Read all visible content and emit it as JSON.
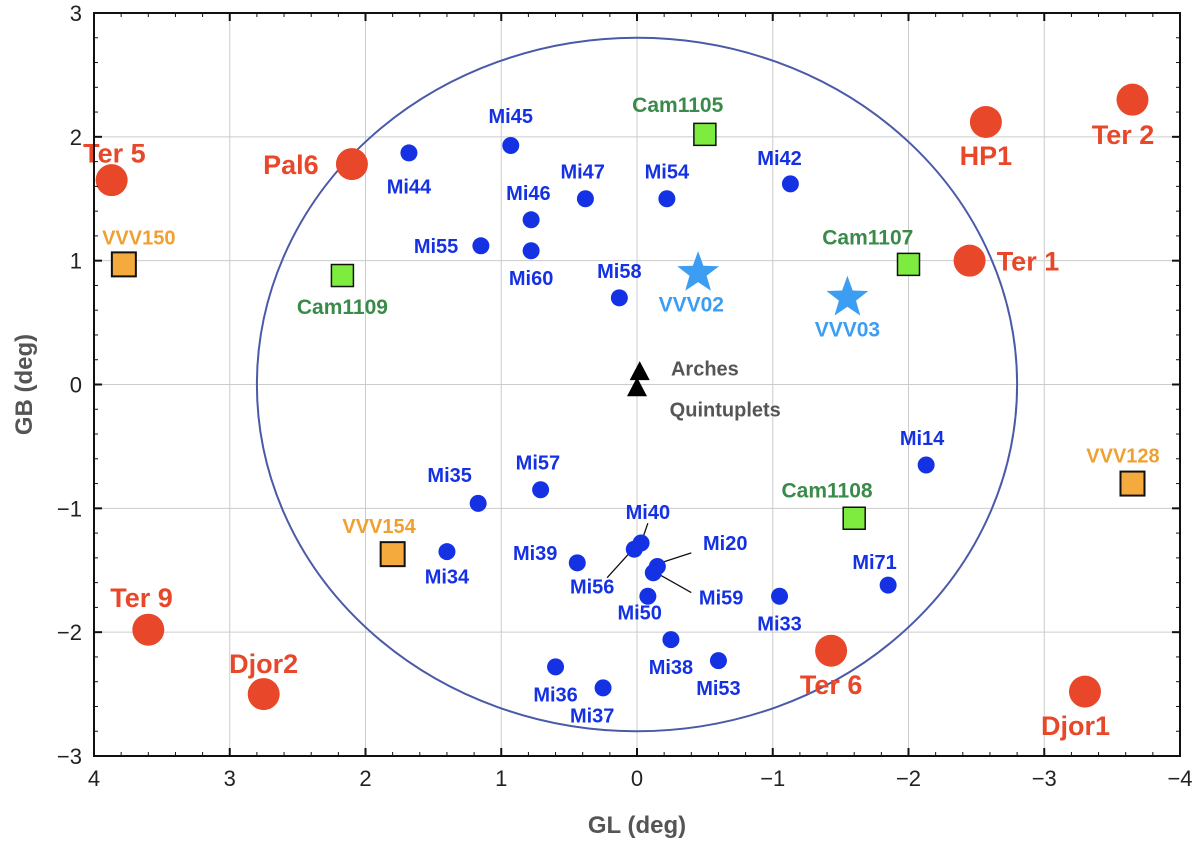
{
  "chart_data": {
    "type": "scatter",
    "title": "",
    "xlabel": "GL (deg)",
    "ylabel": "GB (deg)",
    "xlim": [
      4,
      -4
    ],
    "ylim": [
      -3,
      3
    ],
    "xticks": [
      {
        "v": 4,
        "t": "4"
      },
      {
        "v": 3,
        "t": "3"
      },
      {
        "v": 2,
        "t": "2"
      },
      {
        "v": 1,
        "t": "1"
      },
      {
        "v": 0,
        "t": "0"
      },
      {
        "v": -1,
        "t": "−1"
      },
      {
        "v": -2,
        "t": "−2"
      },
      {
        "v": -3,
        "t": "−3"
      },
      {
        "v": -4,
        "t": "−4"
      }
    ],
    "yticks": [
      {
        "v": 3,
        "t": "3"
      },
      {
        "v": 2,
        "t": "2"
      },
      {
        "v": 1,
        "t": "1"
      },
      {
        "v": 0,
        "t": "0"
      },
      {
        "v": -1,
        "t": "−1"
      },
      {
        "v": -2,
        "t": "−2"
      },
      {
        "v": -3,
        "t": "−3"
      }
    ],
    "grid": true,
    "circle": {
      "center": [
        0,
        0
      ],
      "radius_deg": 2.8,
      "color": "#4a5aa8"
    },
    "colors": {
      "red": "#e8472a",
      "blue": "#1431e3",
      "green": "#7dec3e",
      "green_text": "#3a8a4a",
      "orange": "#f5aa3d",
      "orange_text": "#f0a030",
      "star": "#3c9ef2",
      "gray": "#555555"
    },
    "series": [
      {
        "name": "Red circle clusters",
        "marker": "circle-large",
        "points": [
          {
            "label": "Ter 5",
            "gl": 3.87,
            "gb": 1.65,
            "lx": 3.85,
            "ly": 1.87
          },
          {
            "label": "Pal6",
            "gl": 2.1,
            "gb": 1.78,
            "lx": 2.55,
            "ly": 1.78
          },
          {
            "label": "HP1",
            "gl": -2.57,
            "gb": 2.12,
            "lx": -2.57,
            "ly": 1.85
          },
          {
            "label": "Ter 2",
            "gl": -3.65,
            "gb": 2.3,
            "lx": -3.58,
            "ly": 2.02
          },
          {
            "label": "Ter 1",
            "gl": -2.45,
            "gb": 1.0,
            "lx": -2.88,
            "ly": 1.0
          },
          {
            "label": "Ter 9",
            "gl": 3.6,
            "gb": -1.98,
            "lx": 3.65,
            "ly": -1.72
          },
          {
            "label": "Djor2",
            "gl": 2.75,
            "gb": -2.5,
            "lx": 2.75,
            "ly": -2.25
          },
          {
            "label": "Ter 6",
            "gl": -1.43,
            "gb": -2.15,
            "lx": -1.43,
            "ly": -2.42
          },
          {
            "label": "Djor1",
            "gl": -3.3,
            "gb": -2.48,
            "lx": -3.23,
            "ly": -2.75
          }
        ]
      },
      {
        "name": "Blue dot clusters",
        "marker": "circle-small",
        "points": [
          {
            "label": "Mi45",
            "gl": 0.93,
            "gb": 1.93,
            "lx": 0.93,
            "ly": 2.17
          },
          {
            "label": "Mi44",
            "gl": 1.68,
            "gb": 1.87,
            "lx": 1.68,
            "ly": 1.6
          },
          {
            "label": "Mi47",
            "gl": 0.38,
            "gb": 1.5,
            "lx": 0.4,
            "ly": 1.72
          },
          {
            "label": "Mi54",
            "gl": -0.22,
            "gb": 1.5,
            "lx": -0.22,
            "ly": 1.72
          },
          {
            "label": "Mi42",
            "gl": -1.13,
            "gb": 1.62,
            "lx": -1.05,
            "ly": 1.83
          },
          {
            "label": "Mi46",
            "gl": 0.78,
            "gb": 1.33,
            "lx": 0.8,
            "ly": 1.55
          },
          {
            "label": "Mi55",
            "gl": 1.15,
            "gb": 1.12,
            "lx": 1.48,
            "ly": 1.12
          },
          {
            "label": "Mi60",
            "gl": 0.78,
            "gb": 1.08,
            "lx": 0.78,
            "ly": 0.86
          },
          {
            "label": "Mi58",
            "gl": 0.13,
            "gb": 0.7,
            "lx": 0.13,
            "ly": 0.92
          },
          {
            "label": "Mi14",
            "gl": -2.13,
            "gb": -0.65,
            "lx": -2.1,
            "ly": -0.43
          },
          {
            "label": "Mi35",
            "gl": 1.17,
            "gb": -0.96,
            "lx": 1.38,
            "ly": -0.73
          },
          {
            "label": "Mi57",
            "gl": 0.71,
            "gb": -0.85,
            "lx": 0.73,
            "ly": -0.63
          },
          {
            "label": "Mi34",
            "gl": 1.4,
            "gb": -1.35,
            "lx": 1.4,
            "ly": -1.55
          },
          {
            "label": "Mi39",
            "gl": 0.44,
            "gb": -1.44,
            "lx": 0.75,
            "ly": -1.36
          },
          {
            "label": "Mi56",
            "gl": 0.02,
            "gb": -1.33,
            "lx": 0.33,
            "ly": -1.63
          },
          {
            "label": "Mi40",
            "gl": -0.03,
            "gb": -1.28,
            "lx": -0.08,
            "ly": -1.03
          },
          {
            "label": "Mi20",
            "gl": -0.15,
            "gb": -1.47,
            "lx": -0.65,
            "ly": -1.28
          },
          {
            "label": "Mi59",
            "gl": -0.12,
            "gb": -1.52,
            "lx": -0.62,
            "ly": -1.72
          },
          {
            "label": "Mi50",
            "gl": -0.08,
            "gb": -1.71,
            "lx": -0.02,
            "ly": -1.84
          },
          {
            "label": "Mi71",
            "gl": -1.85,
            "gb": -1.62,
            "lx": -1.75,
            "ly": -1.43
          },
          {
            "label": "Mi33",
            "gl": -1.05,
            "gb": -1.71,
            "lx": -1.05,
            "ly": -1.93
          },
          {
            "label": "Mi38",
            "gl": -0.25,
            "gb": -2.06,
            "lx": -0.25,
            "ly": -2.28
          },
          {
            "label": "Mi53",
            "gl": -0.6,
            "gb": -2.23,
            "lx": -0.6,
            "ly": -2.45
          },
          {
            "label": "Mi36",
            "gl": 0.6,
            "gb": -2.28,
            "lx": 0.6,
            "ly": -2.5
          },
          {
            "label": "Mi37",
            "gl": 0.25,
            "gb": -2.45,
            "lx": 0.33,
            "ly": -2.67
          }
        ]
      },
      {
        "name": "Green square clusters",
        "marker": "square-green",
        "points": [
          {
            "label": "Cam1105",
            "gl": -0.5,
            "gb": 2.02,
            "lx": -0.3,
            "ly": 2.26
          },
          {
            "label": "Cam1107",
            "gl": -2.0,
            "gb": 0.97,
            "lx": -1.7,
            "ly": 1.19
          },
          {
            "label": "Cam1109",
            "gl": 2.17,
            "gb": 0.88,
            "lx": 2.17,
            "ly": 0.63
          },
          {
            "label": "Cam1108",
            "gl": -1.6,
            "gb": -1.08,
            "lx": -1.4,
            "ly": -0.85
          }
        ]
      },
      {
        "name": "Orange square clusters",
        "marker": "square-orange",
        "points": [
          {
            "label": "VVV150",
            "gl": 3.78,
            "gb": 0.97,
            "lx": 3.67,
            "ly": 1.19
          },
          {
            "label": "VVV154",
            "gl": 1.8,
            "gb": -1.37,
            "lx": 1.9,
            "ly": -1.14
          },
          {
            "label": "VVV128",
            "gl": -3.65,
            "gb": -0.8,
            "lx": -3.58,
            "ly": -0.57
          }
        ]
      },
      {
        "name": "Star clusters",
        "marker": "star",
        "points": [
          {
            "label": "VVV02",
            "gl": -0.45,
            "gb": 0.9,
            "lx": -0.4,
            "ly": 0.65
          },
          {
            "label": "VVV03",
            "gl": -1.55,
            "gb": 0.7,
            "lx": -1.55,
            "ly": 0.45
          }
        ]
      },
      {
        "name": "Reference clusters",
        "marker": "triangle",
        "points": [
          {
            "label": "Arches",
            "gl": -0.02,
            "gb": 0.1,
            "lx": -0.5,
            "ly": 0.13
          },
          {
            "label": "Quintuplets",
            "gl": 0.0,
            "gb": -0.03,
            "lx": -0.65,
            "ly": -0.2
          }
        ]
      }
    ],
    "leader_lines": [
      {
        "from": [
          0.03,
          -1.33
        ],
        "to": [
          0.22,
          -1.56
        ]
      },
      {
        "from": [
          -0.12,
          -1.46
        ],
        "to": [
          -0.4,
          -1.36
        ]
      },
      {
        "from": [
          -0.14,
          -1.52
        ],
        "to": [
          -0.4,
          -1.68
        ]
      },
      {
        "from": [
          -0.03,
          -1.28
        ],
        "to": [
          -0.08,
          -1.12
        ]
      }
    ]
  }
}
